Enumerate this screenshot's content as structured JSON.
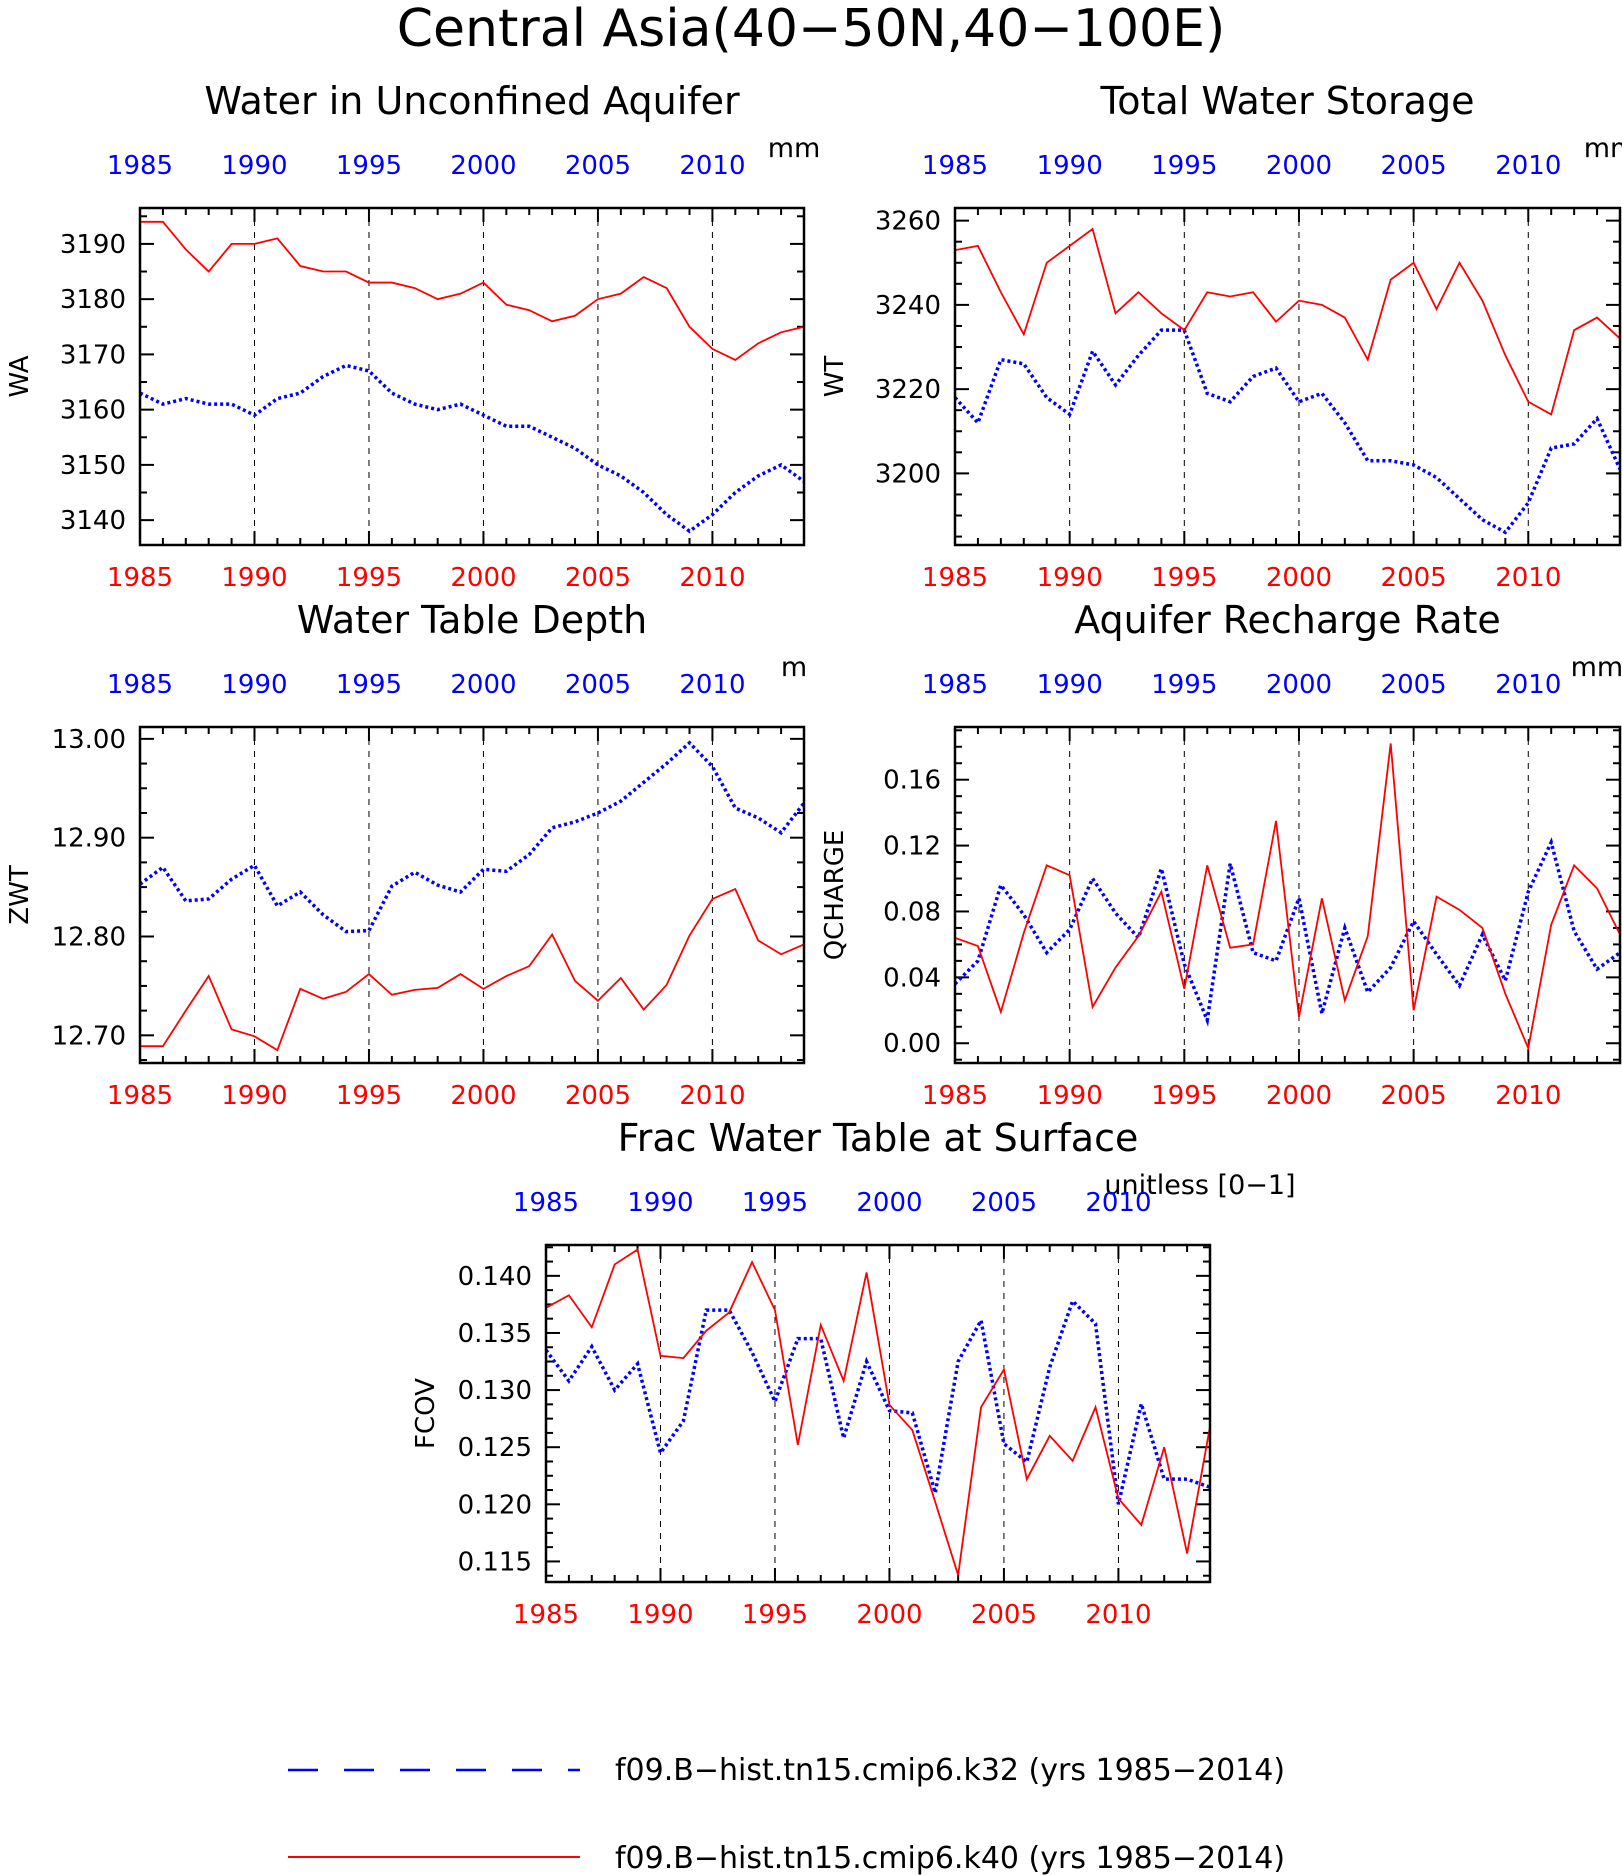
{
  "title": "Central Asia(40−50N,40−100E)",
  "legend": [
    {
      "label": "f09.B−hist.tn15.cmip6.k32 (yrs 1985−2014)",
      "color": "#0000ff",
      "style": "dashed"
    },
    {
      "label": "f09.B−hist.tn15.cmip6.k40 (yrs 1985−2014)",
      "color": "#ff0000",
      "style": "solid"
    }
  ],
  "colors": {
    "k32": "#0000ff",
    "k40": "#ff0000",
    "axis": "#000000"
  },
  "chart_data": [
    {
      "type": "line",
      "title": "Water in Unconfined Aquifer",
      "ylabel": "WA",
      "units": "mm",
      "xlim": [
        1985,
        2014
      ],
      "ylim": [
        3135.5,
        3196.5
      ],
      "yticks": [
        3140,
        3150,
        3160,
        3170,
        3180,
        3190
      ],
      "yticklabels": [
        "3140",
        "3150",
        "3160",
        "3170",
        "3180",
        "3190"
      ],
      "xticks": [
        1985,
        1990,
        1995,
        2000,
        2005,
        2010
      ],
      "xticklabels": [
        "1985",
        "1990",
        "1995",
        "2000",
        "2005",
        "2010"
      ],
      "minor_y": 2,
      "grid_x": true,
      "x": [
        1985,
        1986,
        1987,
        1988,
        1989,
        1990,
        1991,
        1992,
        1993,
        1994,
        1995,
        1996,
        1997,
        1998,
        1999,
        2000,
        2001,
        2002,
        2003,
        2004,
        2005,
        2006,
        2007,
        2008,
        2009,
        2010,
        2011,
        2012,
        2013,
        2014
      ],
      "series": [
        {
          "name": "f09.B−hist.tn15.cmip6.k32",
          "values": [
            3163,
            3161,
            3162,
            3161,
            3161,
            3159,
            3162,
            3163,
            3166,
            3168,
            3167,
            3163,
            3161,
            3160,
            3161,
            3159,
            3157,
            3157,
            3155,
            3153,
            3150,
            3148,
            3145,
            3141,
            3138,
            3141,
            3145,
            3148,
            3150,
            3147
          ]
        },
        {
          "name": "f09.B−hist.tn15.cmip6.k40",
          "values": [
            3194,
            3194,
            3189,
            3185,
            3190,
            3190,
            3191,
            3186,
            3185,
            3185,
            3183,
            3183,
            3182,
            3180,
            3181,
            3183,
            3179,
            3178,
            3176,
            3177,
            3180,
            3181,
            3184,
            3182,
            3175,
            3171,
            3169,
            3172,
            3174,
            3175
          ]
        }
      ]
    },
    {
      "type": "line",
      "title": "Total Water Storage",
      "ylabel": "WT",
      "units": "mm",
      "xlim": [
        1985,
        2014
      ],
      "ylim": [
        3183,
        3263
      ],
      "yticks": [
        3200,
        3220,
        3240,
        3260
      ],
      "yticklabels": [
        "3200",
        "3220",
        "3240",
        "3260"
      ],
      "xticks": [
        1985,
        1990,
        1995,
        2000,
        2005,
        2010
      ],
      "xticklabels": [
        "1985",
        "1990",
        "1995",
        "2000",
        "2005",
        "2010"
      ],
      "minor_y": 4,
      "grid_x": true,
      "x": [
        1985,
        1986,
        1987,
        1988,
        1989,
        1990,
        1991,
        1992,
        1993,
        1994,
        1995,
        1996,
        1997,
        1998,
        1999,
        2000,
        2001,
        2002,
        2003,
        2004,
        2005,
        2006,
        2007,
        2008,
        2009,
        2010,
        2011,
        2012,
        2013,
        2014
      ],
      "series": [
        {
          "name": "f09.B−hist.tn15.cmip6.k32",
          "values": [
            3218,
            3212,
            3227,
            3226,
            3218,
            3214,
            3229,
            3221,
            3228,
            3234,
            3234,
            3219,
            3217,
            3223,
            3225,
            3217,
            3219,
            3212,
            3203,
            3203,
            3202,
            3199,
            3194,
            3189,
            3186,
            3193,
            3206,
            3207,
            3213,
            3201
          ]
        },
        {
          "name": "f09.B−hist.tn15.cmip6.k40",
          "values": [
            3253,
            3254,
            3243,
            3233,
            3250,
            3254,
            3258,
            3238,
            3243,
            3238,
            3234,
            3243,
            3242,
            3243,
            3236,
            3241,
            3240,
            3237,
            3227,
            3246,
            3250,
            3239,
            3250,
            3241,
            3228,
            3217,
            3214,
            3234,
            3237,
            3232
          ]
        }
      ]
    },
    {
      "type": "line",
      "title": "Water Table Depth",
      "ylabel": "ZWT",
      "units": "m",
      "xlim": [
        1985,
        2014
      ],
      "ylim": [
        12.672,
        13.012
      ],
      "yticks": [
        12.7,
        12.8,
        12.9,
        13.0
      ],
      "yticklabels": [
        "12.70",
        "12.80",
        "12.90",
        "13.00"
      ],
      "xticks": [
        1985,
        1990,
        1995,
        2000,
        2005,
        2010
      ],
      "xticklabels": [
        "1985",
        "1990",
        "1995",
        "2000",
        "2005",
        "2010"
      ],
      "minor_y": 4,
      "grid_x": true,
      "x": [
        1985,
        1986,
        1987,
        1988,
        1989,
        1990,
        1991,
        1992,
        1993,
        1994,
        1995,
        1996,
        1997,
        1998,
        1999,
        2000,
        2001,
        2002,
        2003,
        2004,
        2005,
        2006,
        2007,
        2008,
        2009,
        2010,
        2011,
        2012,
        2013,
        2014
      ],
      "series": [
        {
          "name": "f09.B−hist.tn15.cmip6.k32",
          "values": [
            12.853,
            12.87,
            12.836,
            12.838,
            12.858,
            12.872,
            12.831,
            12.845,
            12.822,
            12.805,
            12.806,
            12.851,
            12.865,
            12.852,
            12.845,
            12.868,
            12.866,
            12.883,
            12.91,
            12.916,
            12.925,
            12.937,
            12.956,
            12.975,
            12.996,
            12.972,
            12.93,
            12.92,
            12.905,
            12.935
          ]
        },
        {
          "name": "f09.B−hist.tn15.cmip6.k40",
          "values": [
            12.689,
            12.689,
            12.725,
            12.76,
            12.706,
            12.699,
            12.685,
            12.747,
            12.737,
            12.744,
            12.762,
            12.741,
            12.746,
            12.748,
            12.762,
            12.747,
            12.76,
            12.77,
            12.802,
            12.755,
            12.735,
            12.758,
            12.726,
            12.751,
            12.801,
            12.838,
            12.848,
            12.796,
            12.782,
            12.792
          ]
        }
      ]
    },
    {
      "type": "line",
      "title": "Aquifer Recharge Rate",
      "ylabel": "QCHARGE",
      "units": "mm/d",
      "xlim": [
        1985,
        2014
      ],
      "ylim": [
        -0.012,
        0.192
      ],
      "yticks": [
        0.0,
        0.04,
        0.08,
        0.12,
        0.16
      ],
      "yticklabels": [
        "0.00",
        "0.04",
        "0.08",
        "0.12",
        "0.16"
      ],
      "xticks": [
        1985,
        1990,
        1995,
        2000,
        2005,
        2010
      ],
      "xticklabels": [
        "1985",
        "1990",
        "1995",
        "2000",
        "2005",
        "2010"
      ],
      "minor_y": 4,
      "grid_x": true,
      "x": [
        1985,
        1986,
        1987,
        1988,
        1989,
        1990,
        1991,
        1992,
        1993,
        1994,
        1995,
        1996,
        1997,
        1998,
        1999,
        2000,
        2001,
        2002,
        2003,
        2004,
        2005,
        2006,
        2007,
        2008,
        2009,
        2010,
        2011,
        2012,
        2013,
        2014
      ],
      "series": [
        {
          "name": "f09.B−hist.tn15.cmip6.k32",
          "values": [
            0.036,
            0.05,
            0.096,
            0.078,
            0.055,
            0.069,
            0.1,
            0.079,
            0.064,
            0.106,
            0.048,
            0.014,
            0.109,
            0.055,
            0.05,
            0.088,
            0.018,
            0.07,
            0.031,
            0.046,
            0.074,
            0.054,
            0.035,
            0.066,
            0.038,
            0.092,
            0.122,
            0.068,
            0.045,
            0.055
          ]
        },
        {
          "name": "f09.B−hist.tn15.cmip6.k40",
          "values": [
            0.064,
            0.059,
            0.019,
            0.067,
            0.108,
            0.102,
            0.022,
            0.046,
            0.065,
            0.092,
            0.033,
            0.108,
            0.058,
            0.06,
            0.135,
            0.016,
            0.088,
            0.026,
            0.065,
            0.182,
            0.02,
            0.089,
            0.081,
            0.07,
            0.03,
            -0.003,
            0.072,
            0.108,
            0.094,
            0.066
          ]
        }
      ]
    },
    {
      "type": "line",
      "title": "Frac Water Table at Surface",
      "ylabel": "FCOV",
      "units": "unitless [0−1]",
      "xlim": [
        1985,
        2014
      ],
      "ylim": [
        0.1132,
        0.1427
      ],
      "yticks": [
        0.115,
        0.12,
        0.125,
        0.13,
        0.135,
        0.14
      ],
      "yticklabels": [
        "0.115",
        "0.120",
        "0.125",
        "0.130",
        "0.135",
        "0.140"
      ],
      "xticks": [
        1985,
        1990,
        1995,
        2000,
        2005,
        2010
      ],
      "xticklabels": [
        "1985",
        "1990",
        "1995",
        "2000",
        "2005",
        "2010"
      ],
      "minor_y": 4,
      "grid_x": true,
      "x": [
        1985,
        1986,
        1987,
        1988,
        1989,
        1990,
        1991,
        1992,
        1993,
        1994,
        1995,
        1996,
        1997,
        1998,
        1999,
        2000,
        2001,
        2002,
        2003,
        2004,
        2005,
        2006,
        2007,
        2008,
        2009,
        2010,
        2011,
        2012,
        2013,
        2014
      ],
      "series": [
        {
          "name": "f09.B−hist.tn15.cmip6.k32",
          "values": [
            0.1335,
            0.1308,
            0.1338,
            0.13,
            0.1323,
            0.1245,
            0.1273,
            0.137,
            0.137,
            0.1333,
            0.129,
            0.1345,
            0.1345,
            0.1258,
            0.1325,
            0.1282,
            0.128,
            0.121,
            0.1325,
            0.1361,
            0.1253,
            0.1237,
            0.132,
            0.1378,
            0.1358,
            0.12,
            0.1288,
            0.1222,
            0.1222,
            0.1215
          ]
        },
        {
          "name": "f09.B−hist.tn15.cmip6.k40",
          "values": [
            0.1372,
            0.1383,
            0.1355,
            0.141,
            0.1423,
            0.133,
            0.1328,
            0.1352,
            0.1368,
            0.1412,
            0.137,
            0.1252,
            0.1357,
            0.1308,
            0.1403,
            0.1287,
            0.1265,
            0.1202,
            0.1138,
            0.1285,
            0.1318,
            0.1222,
            0.126,
            0.1238,
            0.1285,
            0.1205,
            0.1182,
            0.125,
            0.1157,
            0.1268
          ]
        }
      ]
    }
  ]
}
